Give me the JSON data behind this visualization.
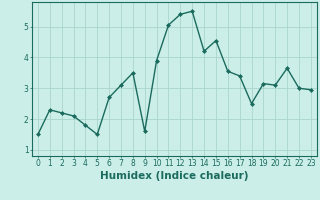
{
  "xlabel": "Humidex (Indice chaleur)",
  "ylabel": "",
  "x": [
    0,
    1,
    2,
    3,
    4,
    5,
    6,
    7,
    8,
    9,
    10,
    11,
    12,
    13,
    14,
    15,
    16,
    17,
    18,
    19,
    20,
    21,
    22,
    23
  ],
  "y": [
    1.5,
    2.3,
    2.2,
    2.1,
    1.8,
    1.5,
    2.7,
    3.1,
    3.5,
    1.6,
    3.9,
    5.05,
    5.4,
    5.5,
    4.2,
    4.55,
    3.55,
    3.4,
    2.5,
    3.15,
    3.1,
    3.65,
    3.0,
    2.95
  ],
  "line_color": "#1a6b5e",
  "marker": "D",
  "marker_size": 2.0,
  "background_color": "#cceee8",
  "grid_color": "#aad4cc",
  "ylim": [
    0.8,
    5.8
  ],
  "xlim": [
    -0.5,
    23.5
  ],
  "yticks": [
    1,
    2,
    3,
    4,
    5
  ],
  "xtick_labels": [
    "0",
    "1",
    "2",
    "3",
    "4",
    "5",
    "6",
    "7",
    "8",
    "9",
    "10",
    "11",
    "12",
    "13",
    "14",
    "15",
    "16",
    "17",
    "18",
    "19",
    "20",
    "21",
    "22",
    "23"
  ],
  "axis_color": "#1a6b5e",
  "tick_fontsize": 5.5,
  "xlabel_fontsize": 7.5,
  "linewidth": 1.0,
  "figsize": [
    3.2,
    2.0
  ],
  "dpi": 100
}
